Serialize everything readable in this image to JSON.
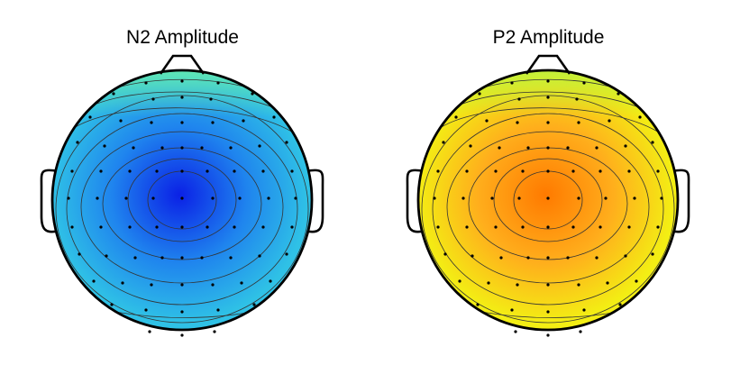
{
  "maps": [
    {
      "title": "N2 Amplitude",
      "colors": {
        "center": "#0b21e6",
        "mid": "#1f84ee",
        "edge": "#2fc1e6",
        "front": "#5fe7b4"
      }
    },
    {
      "title": "P2 Amplitude",
      "colors": {
        "center": "#ff7a00",
        "mid": "#ffae1c",
        "edge": "#f3ee14",
        "front": "#c3f03a"
      }
    }
  ]
}
